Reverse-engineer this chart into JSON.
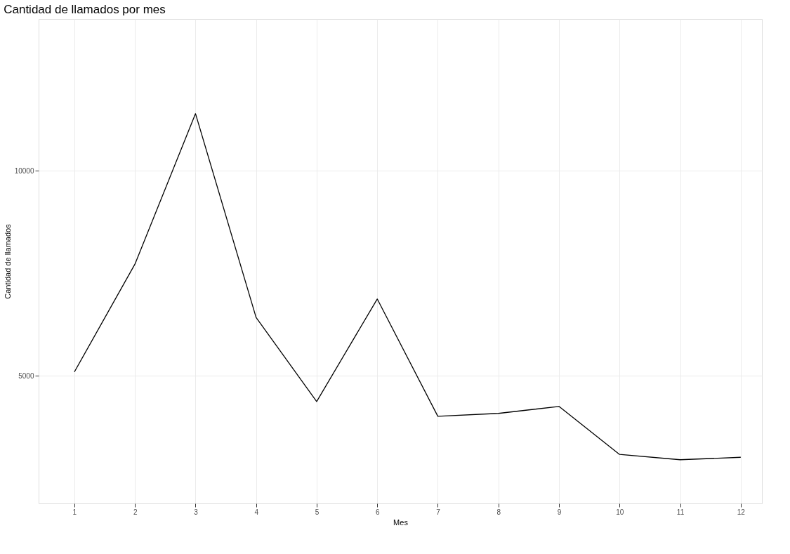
{
  "chart_data": {
    "type": "line",
    "title": "Cantidad de llamados por mes",
    "xlabel": "Mes",
    "ylabel": "Cantidad de llamados",
    "x": [
      1,
      2,
      3,
      4,
      5,
      6,
      7,
      8,
      9,
      10,
      11,
      12
    ],
    "series": [
      {
        "color": "#000000",
        "values": [
          5090,
          7720,
          11390,
          6420,
          4370,
          6870,
          4010,
          4080,
          4250,
          3080,
          2950,
          3010
        ]
      }
    ],
    "xlim": [
      0.41,
      12.35
    ],
    "xticks": [
      1,
      2,
      3,
      4,
      5,
      6,
      7,
      8,
      9,
      10,
      11,
      12
    ],
    "ylim": [
      1884,
      13699
    ],
    "yticks": [
      5000,
      10000
    ],
    "grid": true,
    "legend": false,
    "marker": "none",
    "line_style": "solid"
  }
}
